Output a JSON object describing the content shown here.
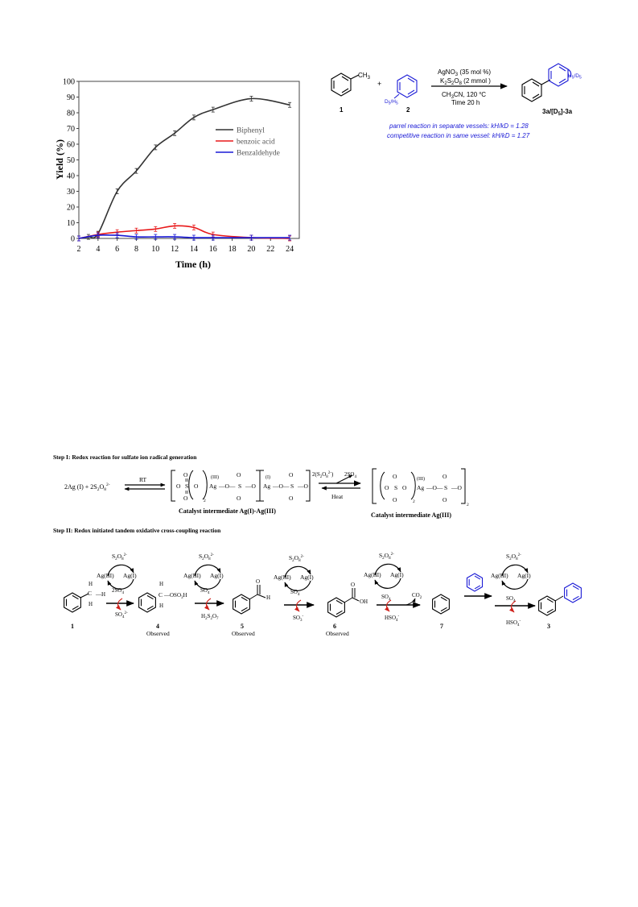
{
  "chart_data": {
    "type": "line",
    "xlabel": "Time (h)",
    "ylabel": "Yield (%)",
    "xlim": [
      2,
      25
    ],
    "ylim": [
      0,
      100
    ],
    "xticks": [
      2,
      4,
      6,
      8,
      10,
      12,
      14,
      16,
      18,
      20,
      22,
      24
    ],
    "yticks": [
      0,
      10,
      20,
      30,
      40,
      50,
      60,
      70,
      80,
      90,
      100
    ],
    "grid": false,
    "legend": "center-right",
    "series": [
      {
        "name": "Biphenyl",
        "color": "#333333",
        "x": [
          2,
          3,
          4,
          6,
          8,
          10,
          12,
          14,
          16,
          20,
          24
        ],
        "y": [
          0,
          1,
          3,
          30,
          43,
          58,
          67,
          77,
          82,
          89,
          85
        ]
      },
      {
        "name": "benzoic acid",
        "color": "#e8191a",
        "x": [
          2,
          4,
          6,
          8,
          10,
          12,
          14,
          16,
          20,
          24
        ],
        "y": [
          0,
          2.5,
          4,
          5,
          6,
          8,
          7,
          2.5,
          0.5,
          0
        ]
      },
      {
        "name": "Benzaldehyde",
        "color": "#1a1ad6",
        "x": [
          2,
          4,
          6,
          8,
          10,
          12,
          14,
          16,
          20,
          24
        ],
        "y": [
          0,
          2,
          2,
          1,
          1,
          1,
          0.5,
          0.5,
          0.5,
          0.5
        ]
      }
    ]
  },
  "scheme": {
    "methyl": "CH",
    "methyl_sub": "3",
    "plus": "+",
    "deut_label": "D",
    "deut_sub": "5",
    "deut_slash": "/H",
    "deut_sub2": "5",
    "cond1": "AgNO",
    "cond1_sub": "3",
    "cond1_rest": " (35 mol %)",
    "cond2_a": "K",
    "cond2_sub1": "2",
    "cond2_b": "S",
    "cond2_sub2": "2",
    "cond2_c": "O",
    "cond2_sub3": "8",
    "cond2_rest": " (2 mmol )",
    "cond3_a": "CH",
    "cond3_sub": "3",
    "cond3_b": "CN, 120 ",
    "cond3_sup": "o",
    "cond3_c": "C",
    "cond4": "Time 20 h",
    "label1": "1",
    "label2": "2",
    "label3": "3a/[D",
    "label3_sub": "5",
    "label3_rest": "]-3a",
    "product_sub_a": "H",
    "product_sub_a2": "5",
    "product_sub_b": "/D",
    "product_sub_b2": "5",
    "note1": "parrel reaction in separate vessels: kH/kD = 1.28",
    "note2": "competitive reaction in same vessel: kH/kD = 1.27"
  },
  "step1": {
    "title": "Step I: Redox reaction for sulfate ion radical generation",
    "reactants": "2Ag (I) + 2S",
    "rt": "RT",
    "heat": "Heat",
    "ox_III": "(III)",
    "ox_I": "(I)",
    "ag": "Ag",
    "plus_s2o8": "2(S",
    "so4_rad": "2SO",
    "caption_left": "Catalyst intermediate Ag(I)-Ag(III)",
    "caption_right": "Catalyst intermediate Ag(III)",
    "bracket_sub": "2"
  },
  "step2": {
    "title": "Step II: Redox initiated tandem oxidative cross-coupling reaction",
    "agIII": "Ag(III)",
    "agI": "Ag(I)",
    "s2o8": "S",
    "c1_top": "2SO",
    "c1_bot": "SO",
    "so3h": "OSO",
    "c2_bot": "H",
    "c3_bot": "SO",
    "c4_bot": "HSO",
    "co2": "CO",
    "c5_bot": "HSO",
    "so4": "SO",
    "label_1": "1",
    "label_4": "4",
    "label_5": "5",
    "label_6": "6",
    "label_7": "7",
    "label_3": "3",
    "observed": "Observed",
    "H": "H",
    "C": "C",
    "O": "O",
    "OH": "OH"
  }
}
